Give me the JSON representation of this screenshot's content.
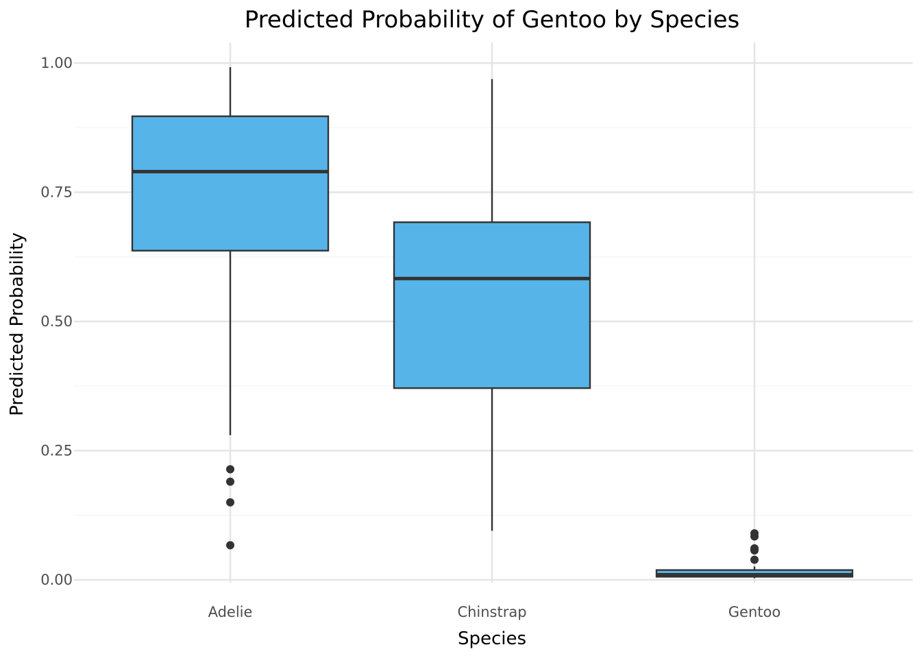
{
  "chart_data": {
    "type": "box",
    "title": "Predicted Probability of Gentoo by Species",
    "xlabel": "Species",
    "ylabel": "Predicted Probability",
    "ylim": [
      -0.005,
      1.03
    ],
    "y_ticks": [
      0.0,
      0.25,
      0.5,
      0.75,
      1.0
    ],
    "y_tick_labels": [
      "0.00",
      "0.25",
      "0.50",
      "0.75",
      "1.00"
    ],
    "y_minor_ticks": [
      0.125,
      0.375,
      0.625,
      0.875
    ],
    "categories": [
      "Adelie",
      "Chinstrap",
      "Gentoo"
    ],
    "fill_color": "#56B4E9",
    "line_color": "#333333",
    "grid": true,
    "legend": "none",
    "boxes": [
      {
        "category": "Adelie",
        "whisker_low": 0.28,
        "q1": 0.637,
        "median": 0.79,
        "q3": 0.897,
        "whisker_high": 0.992,
        "outliers": [
          0.214,
          0.19,
          0.15,
          0.067
        ]
      },
      {
        "category": "Chinstrap",
        "whisker_low": 0.095,
        "q1": 0.371,
        "median": 0.583,
        "q3": 0.692,
        "whisker_high": 0.969,
        "outliers": []
      },
      {
        "category": "Gentoo",
        "whisker_low": 0.003,
        "q1": 0.006,
        "median": 0.01,
        "q3": 0.019,
        "whisker_high": 0.026,
        "outliers": [
          0.09,
          0.084,
          0.061,
          0.057,
          0.039
        ]
      }
    ]
  }
}
